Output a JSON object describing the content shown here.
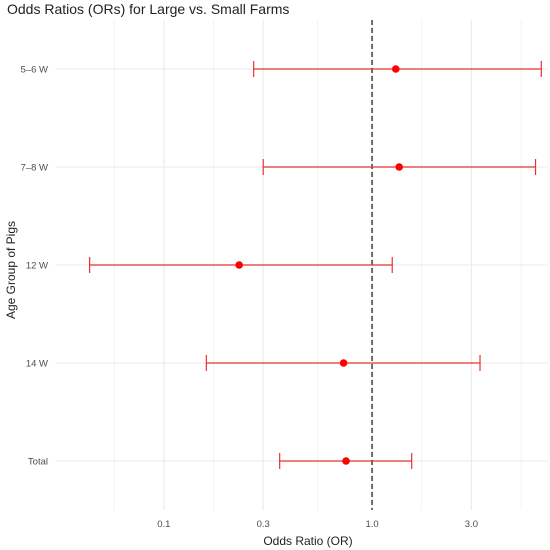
{
  "chart_data": {
    "type": "forest",
    "title": "Odds Ratios (ORs) for Large vs. Small Farms",
    "xlabel": "Odds Ratio (OR)",
    "ylabel": "Age Group of Pigs",
    "x_scale": "log",
    "xlim": [
      0.03,
      7.0
    ],
    "x_ticks": [
      0.1,
      0.3,
      1.0,
      3.0
    ],
    "x_tick_labels": [
      "0.1",
      "0.3",
      "1.0",
      "3.0"
    ],
    "reference_line": 1.0,
    "grid": true,
    "categories": [
      "5–6 W",
      "7–8 W",
      "12 W",
      "14 W",
      "Total"
    ],
    "points": [
      {
        "label": "5–6 W",
        "or": 1.3,
        "lower": 0.27,
        "upper": 6.5
      },
      {
        "label": "7–8 W",
        "or": 1.35,
        "lower": 0.3,
        "upper": 6.1
      },
      {
        "label": "12 W",
        "or": 0.23,
        "lower": 0.044,
        "upper": 1.25
      },
      {
        "label": "14 W",
        "or": 0.73,
        "lower": 0.16,
        "upper": 3.3
      },
      {
        "label": "Total",
        "or": 0.75,
        "lower": 0.36,
        "upper": 1.55
      }
    ],
    "colors": {
      "point": "#ff0000",
      "error_bar": "#e8322f",
      "reference_line": "#333333",
      "grid": "#ebebeb"
    }
  }
}
